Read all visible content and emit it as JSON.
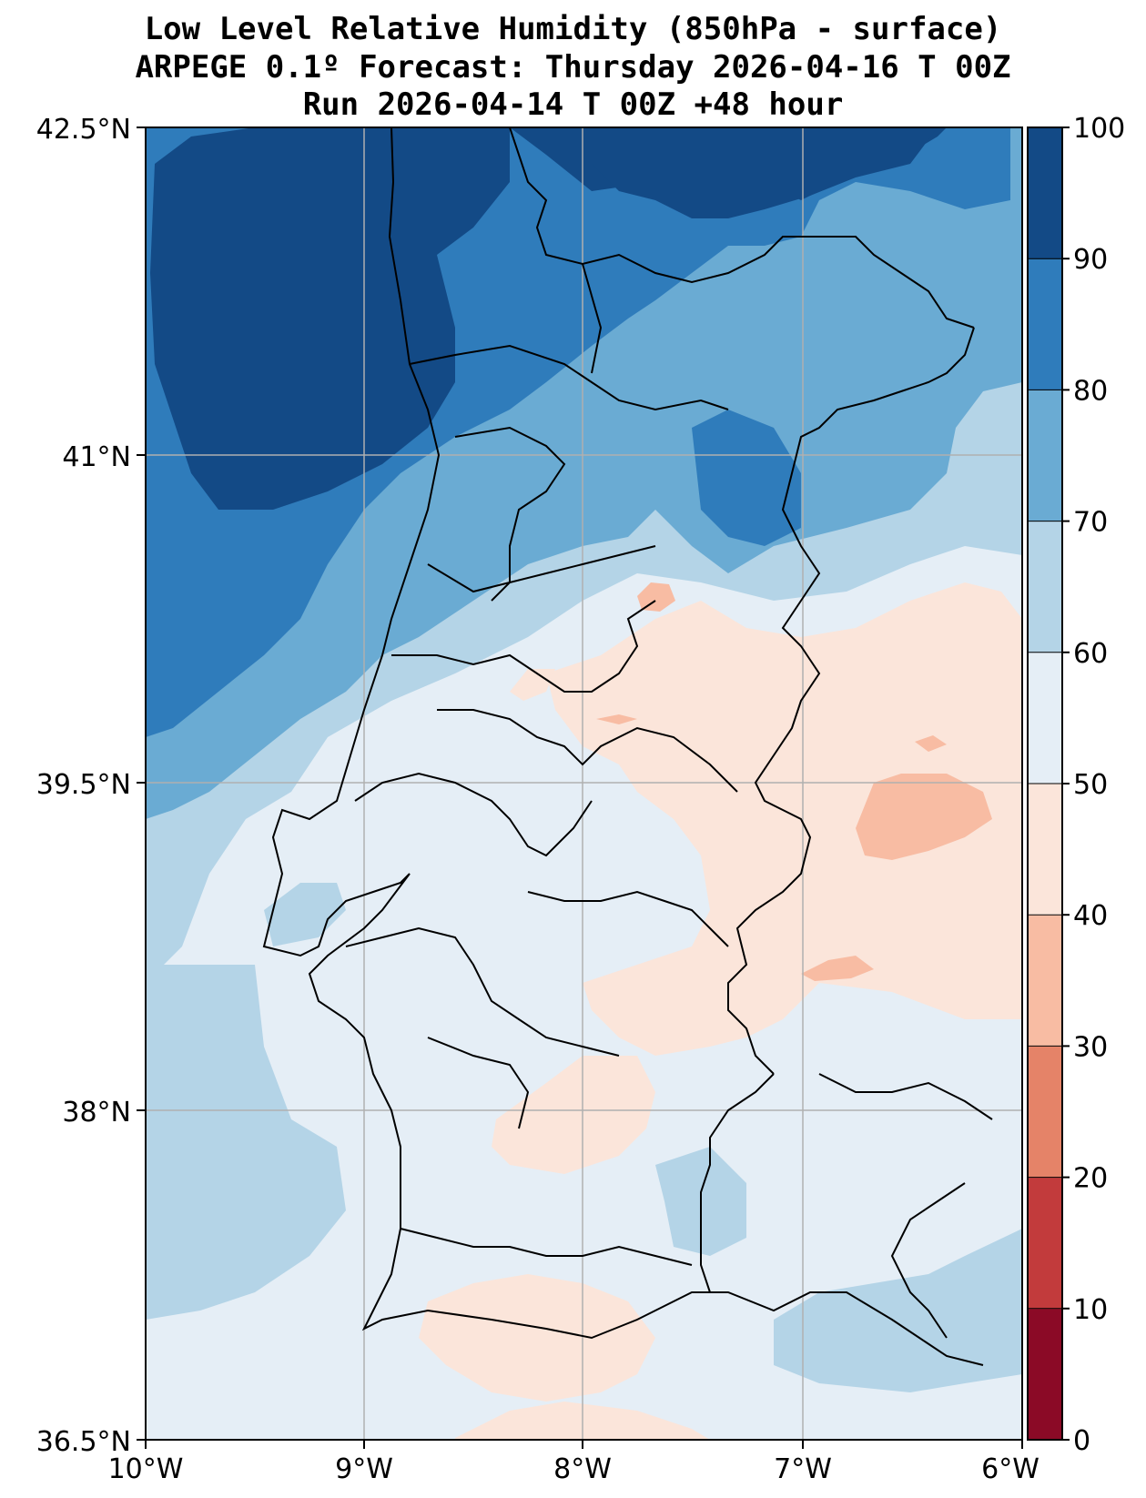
{
  "title": {
    "line1": "Low Level Relative Humidity (850hPa - surface)",
    "line2": "ARPEGE 0.1º Forecast: Thursday 2026-04-16 T 00Z",
    "line3": "Run 2026-04-14 T 00Z +48 hour"
  },
  "axes": {
    "lat_labels": [
      "42.5°N",
      "41°N",
      "39.5°N",
      "38°N",
      "36.5°N"
    ],
    "lon_labels": [
      "10°W",
      "9°W",
      "8°W",
      "7°W",
      "6°W"
    ]
  },
  "colorbar": {
    "levels": [
      "0",
      "10",
      "20",
      "30",
      "40",
      "50",
      "60",
      "70",
      "80",
      "90",
      "100"
    ],
    "colors": [
      "#8b0a26",
      "#c23b3c",
      "#e58368",
      "#f8bca3",
      "#fbe5da",
      "#e5eef6",
      "#b4d4e7",
      "#6aabd3",
      "#2f7cbb",
      "#134a86"
    ]
  },
  "palette": {
    "rh_90_100": "#134a86",
    "rh_80_90": "#2f7cbb",
    "rh_70_80": "#6aabd3",
    "rh_60_70": "#b4d4e7",
    "rh_50_60": "#e5eef6",
    "rh_40_50": "#fbe5da",
    "rh_30_40": "#f8bca3",
    "rh_20_30": "#e58368",
    "grid": "#b0b0b0",
    "coast": "#000000"
  }
}
